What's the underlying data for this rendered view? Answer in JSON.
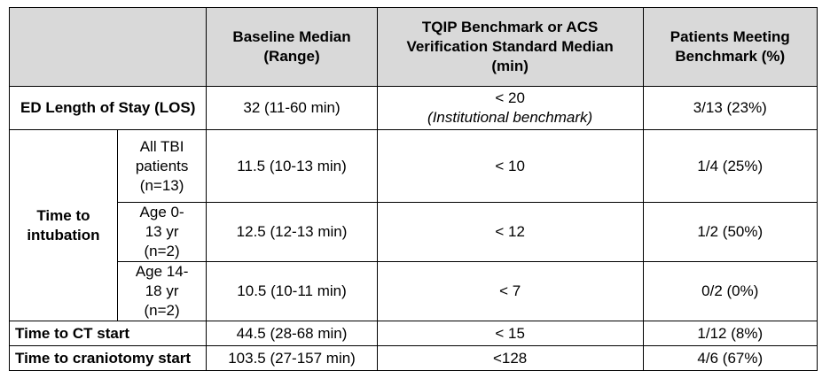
{
  "table": {
    "headers": [
      "Baseline Median (Range)",
      "TQIP Benchmark or ACS Verification Standard Median (min)",
      "Patients Meeting Benchmark (%)"
    ],
    "ed_los": {
      "label": "ED Length of Stay (LOS)",
      "baseline": "32 (11-60 min)",
      "benchmark": "< 20",
      "benchmark_note": "(Institutional benchmark)",
      "met": "3/13 (23%)"
    },
    "intubation": {
      "label": "Time to intubation",
      "rows": [
        {
          "label": "All TBI patients (n=13)",
          "baseline": "11.5 (10-13 min)",
          "benchmark": "< 10",
          "met": "1/4 (25%)"
        },
        {
          "label": "Age 0-13 yr (n=2)",
          "baseline": "12.5 (12-13 min)",
          "benchmark": "< 12",
          "met": "1/2 (50%)"
        },
        {
          "label": "Age 14-18 yr (n=2)",
          "baseline": "10.5 (10-11 min)",
          "benchmark": "< 7",
          "met": "0/2 (0%)"
        }
      ]
    },
    "ct": {
      "label": "Time to CT start",
      "baseline": "44.5 (28-68 min)",
      "benchmark": "< 15",
      "met": "1/12 (8%)"
    },
    "craniotomy": {
      "label": "Time to craniotomy start",
      "baseline": "103.5 (27-157 min)",
      "benchmark": "<128",
      "met": "4/6 (67%)"
    }
  }
}
